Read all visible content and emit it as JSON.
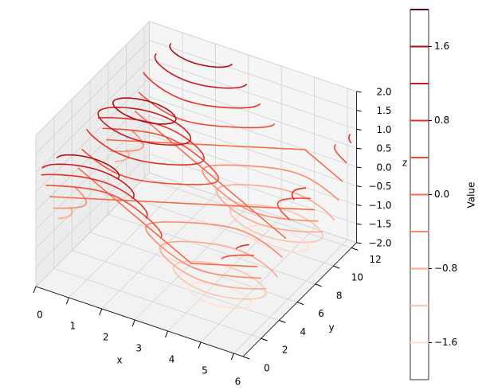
{
  "chart_data": {
    "type": "contour3d",
    "xlabel": "x",
    "ylabel": "y",
    "zlabel": "z",
    "colorbar_label": "Value",
    "xlim": [
      0,
      6.28
    ],
    "ylim": [
      0,
      12.57
    ],
    "zlim": [
      -2,
      2
    ],
    "xticks": [
      0,
      1,
      2,
      3,
      4,
      5,
      6
    ],
    "yticks": [
      0,
      2,
      4,
      6,
      8,
      10,
      12
    ],
    "zticks": [
      {
        "value": -2,
        "label": "−2.0"
      },
      {
        "value": -1.5,
        "label": "−1.5"
      },
      {
        "value": -1,
        "label": "−1.0"
      },
      {
        "value": -0.5,
        "label": "−0.5"
      },
      {
        "value": 0,
        "label": "0.0"
      },
      0.5,
      {
        "value": 1,
        "label": "1.0"
      },
      1.5,
      {
        "value": 2,
        "label": "2.0"
      }
    ],
    "levels": [
      -1.6,
      -1.2,
      -0.8,
      -0.4,
      0,
      0.4,
      0.8,
      1.2,
      1.6,
      2.0
    ],
    "level_colors": [
      "#fee0d2",
      "#fcc5ab",
      "#fca78b",
      "#fc8a6a",
      "#f96a4c",
      "#f14a36",
      "#e32f27",
      "#c9191e",
      "#ab1016",
      "#67000d"
    ],
    "clim": [
      -2,
      2
    ],
    "colorbar_ticks": [
      {
        "value": -1.6,
        "label": "−1.6"
      },
      {
        "value": -0.8,
        "label": "−0.8"
      },
      {
        "value": 0,
        "label": "0.0"
      },
      0.8,
      1.6
    ],
    "grid": true
  }
}
